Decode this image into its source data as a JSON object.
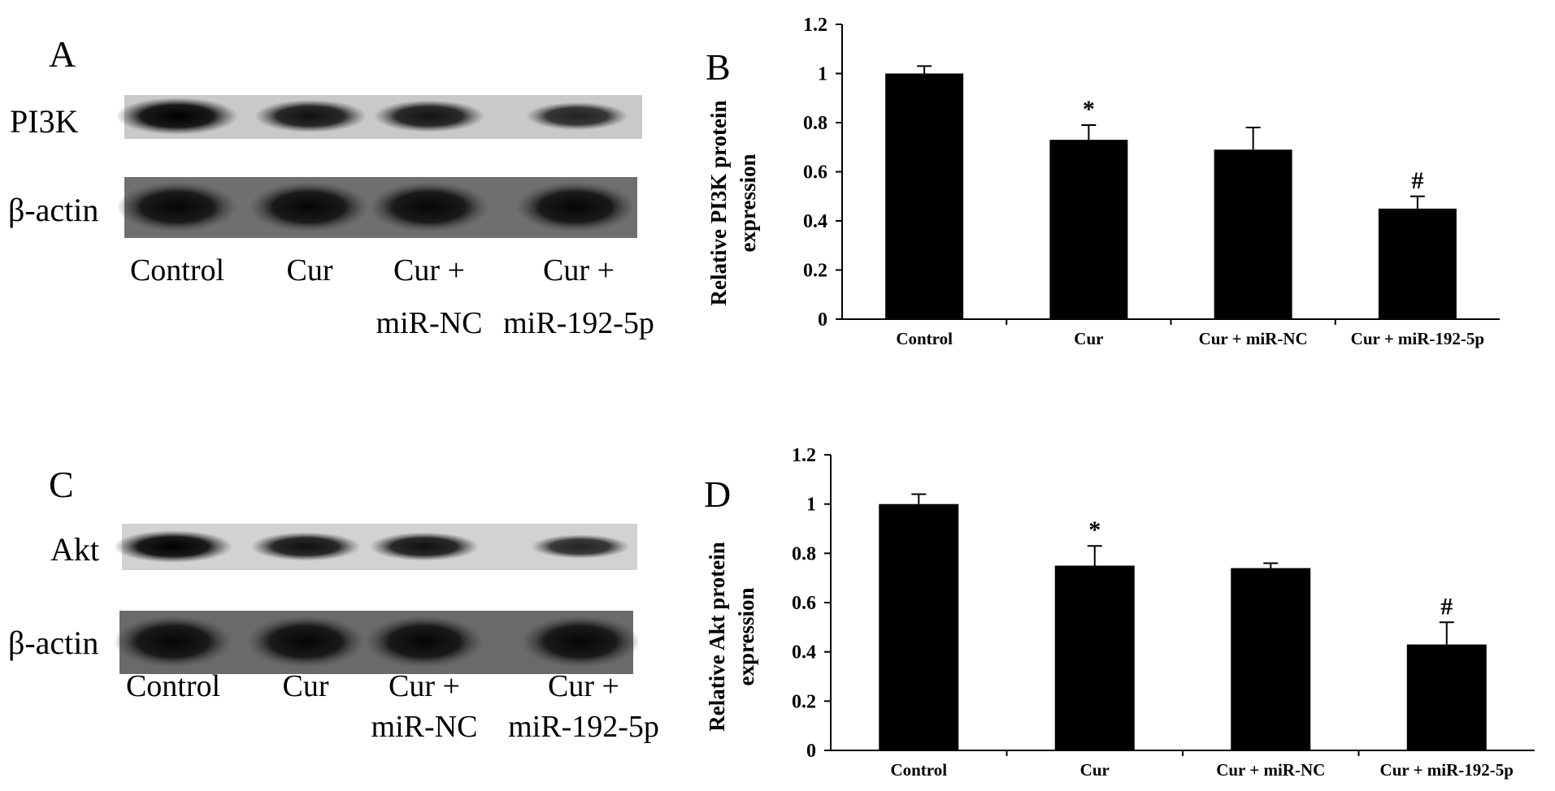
{
  "panels": {
    "A": {
      "letter": "A"
    },
    "B": {
      "letter": "B"
    },
    "C": {
      "letter": "C"
    },
    "D": {
      "letter": "D"
    }
  },
  "blots": [
    {
      "protein_label": "PI3K",
      "control_label": "β-actin",
      "lanes": [
        {
          "line1": "Control",
          "line2": ""
        },
        {
          "line1": "Cur",
          "line2": ""
        },
        {
          "line1": "Cur  +",
          "line2": "miR-NC"
        },
        {
          "line1": "Cur +",
          "line2": "miR-192-5p"
        }
      ],
      "protein_band_intensity": [
        1.0,
        0.73,
        0.69,
        0.45
      ]
    },
    {
      "protein_label": "Akt",
      "control_label": "β-actin",
      "lanes": [
        {
          "line1": "Control",
          "line2": ""
        },
        {
          "line1": "Cur",
          "line2": ""
        },
        {
          "line1": "Cur  +",
          "line2": "miR-NC"
        },
        {
          "line1": "Cur +",
          "line2": "miR-192-5p"
        }
      ],
      "protein_band_intensity": [
        1.0,
        0.75,
        0.74,
        0.43
      ]
    }
  ],
  "chart_data": [
    {
      "type": "bar",
      "panel": "B",
      "title": "",
      "xlabel": "",
      "ylabel_line1": "Relative PI3K protein",
      "ylabel_line2": "expression",
      "categories": [
        "Control",
        "Cur",
        "Cur + miR-NC",
        "Cur + miR-192-5p"
      ],
      "values": [
        1.0,
        0.73,
        0.69,
        0.45
      ],
      "errors": [
        0.03,
        0.06,
        0.09,
        0.05
      ],
      "annotations": [
        "",
        "*",
        "",
        "#"
      ],
      "ylim": [
        0,
        1.2
      ],
      "yticks": [
        "0",
        "0.2",
        "0.4",
        "0.6",
        "0.8",
        "1",
        "1.2"
      ],
      "bar_color": "#000000",
      "grid": false
    },
    {
      "type": "bar",
      "panel": "D",
      "title": "",
      "xlabel": "",
      "ylabel_line1": "Relative Akt protein",
      "ylabel_line2": "expression",
      "categories": [
        "Control",
        "Cur",
        "Cur + miR-NC",
        "Cur + miR-192-5p"
      ],
      "values": [
        1.0,
        0.75,
        0.74,
        0.43
      ],
      "errors": [
        0.04,
        0.08,
        0.02,
        0.09
      ],
      "annotations": [
        "",
        "*",
        "",
        "#"
      ],
      "ylim": [
        0,
        1.2
      ],
      "yticks": [
        "0",
        "0.2",
        "0.4",
        "0.6",
        "0.8",
        "1",
        "1.2"
      ],
      "bar_color": "#000000",
      "grid": false
    }
  ]
}
